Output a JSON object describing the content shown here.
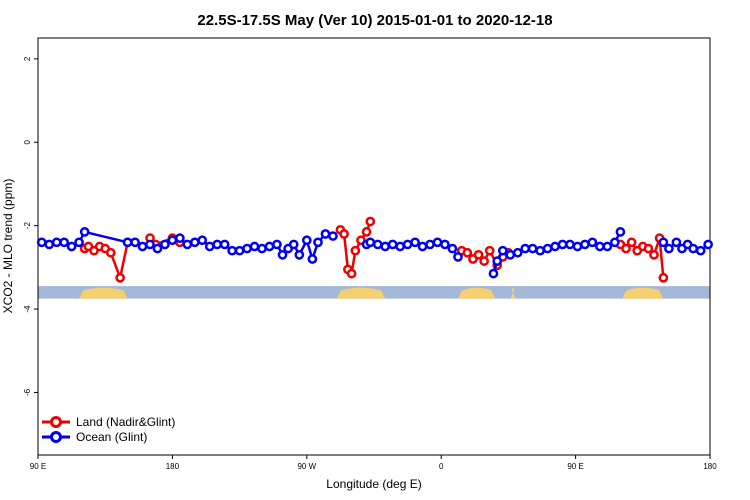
{
  "chart_data": {
    "type": "line",
    "title": "22.5S-17.5S May (Ver 10)   2015-01-01 to 2020-12-18",
    "xlabel": "Longitude (deg E)",
    "ylabel": "XCO2 - MLO trend (ppm)",
    "xlim": [
      0,
      360
    ],
    "ylim": [
      -7.5,
      2.5
    ],
    "x_ticks": [
      {
        "value": 0,
        "label": "90 E"
      },
      {
        "value": 72,
        "label": "180"
      },
      {
        "value": 144,
        "label": "90 W"
      },
      {
        "value": 216,
        "label": "0"
      },
      {
        "value": 288,
        "label": "90 E"
      },
      {
        "value": 360,
        "label": "180"
      }
    ],
    "y_ticks": [
      {
        "value": 2,
        "label": "2"
      },
      {
        "value": 0,
        "label": "0"
      },
      {
        "value": -2,
        "label": "-2"
      },
      {
        "value": -4,
        "label": "-4"
      },
      {
        "value": -6,
        "label": "-6"
      }
    ],
    "grid": false,
    "legend_position": "bottom-left",
    "land_ocean_band": {
      "y_range": [
        -3.75,
        -3.45
      ],
      "ocean_color": "#a3b7d9",
      "land_color": "#f5d070",
      "land_segments": [
        [
          22,
          48
        ],
        [
          160,
          186
        ],
        [
          225,
          245
        ],
        [
          253,
          256
        ],
        [
          313,
          335
        ]
      ]
    },
    "series": [
      {
        "name": "Land (Nadir&Glint)",
        "color": "#ee0000",
        "segments": [
          {
            "x": [
              25,
              27,
              30,
              33,
              36,
              39,
              44,
              48
            ],
            "y": [
              -2.55,
              -2.5,
              -2.6,
              -2.5,
              -2.55,
              -2.65,
              -3.25,
              -2.4
            ]
          },
          {
            "x": [
              60,
              63,
              72,
              76
            ],
            "y": [
              -2.3,
              -2.45,
              -2.3,
              -2.4
            ]
          },
          {
            "x": [
              162,
              164,
              166,
              168,
              170,
              173,
              176,
              178
            ],
            "y": [
              -2.1,
              -2.2,
              -3.05,
              -3.15,
              -2.6,
              -2.35,
              -2.15,
              -1.9
            ]
          },
          {
            "x": [
              227,
              230,
              233,
              236,
              239,
              242,
              246,
              249,
              252
            ],
            "y": [
              -2.6,
              -2.65,
              -2.8,
              -2.7,
              -2.85,
              -2.6,
              -2.95,
              -2.75,
              -2.65
            ]
          },
          {
            "x": [
              312,
              315,
              318,
              321,
              324,
              327,
              330,
              333,
              335
            ],
            "y": [
              -2.45,
              -2.55,
              -2.4,
              -2.6,
              -2.5,
              -2.55,
              -2.7,
              -2.3,
              -3.25
            ]
          }
        ]
      },
      {
        "name": "Ocean (Glint)",
        "color": "#0000ee",
        "segments": [
          {
            "x": [
              2,
              6,
              10,
              14,
              18,
              22,
              25,
              48,
              52,
              56,
              60,
              64,
              68,
              72,
              76,
              80,
              84,
              88,
              92,
              96,
              100,
              104,
              108,
              112,
              116,
              120,
              124,
              128,
              131,
              134,
              137,
              140,
              144,
              147,
              150,
              154,
              158
            ],
            "y": [
              -2.4,
              -2.45,
              -2.4,
              -2.4,
              -2.5,
              -2.4,
              -2.15,
              -2.4,
              -2.4,
              -2.5,
              -2.45,
              -2.55,
              -2.45,
              -2.35,
              -2.3,
              -2.45,
              -2.4,
              -2.35,
              -2.5,
              -2.45,
              -2.45,
              -2.6,
              -2.6,
              -2.55,
              -2.5,
              -2.55,
              -2.5,
              -2.45,
              -2.7,
              -2.55,
              -2.45,
              -2.7,
              -2.35,
              -2.8,
              -2.4,
              -2.2,
              -2.25
            ]
          },
          {
            "x": [
              176,
              178,
              182,
              186,
              190,
              194,
              198,
              202,
              206,
              210,
              214,
              218,
              222,
              225
            ],
            "y": [
              -2.45,
              -2.4,
              -2.45,
              -2.5,
              -2.45,
              -2.5,
              -2.45,
              -2.4,
              -2.5,
              -2.45,
              -2.4,
              -2.45,
              -2.55,
              -2.75
            ]
          },
          {
            "x": [
              244,
              246,
              249,
              253,
              257,
              261,
              265,
              269,
              273,
              277,
              281,
              285,
              289,
              293,
              297,
              301,
              305,
              309,
              312
            ],
            "y": [
              -3.15,
              -2.85,
              -2.6,
              -2.7,
              -2.65,
              -2.55,
              -2.55,
              -2.6,
              -2.55,
              -2.5,
              -2.45,
              -2.45,
              -2.5,
              -2.45,
              -2.4,
              -2.5,
              -2.5,
              -2.4,
              -2.15
            ]
          },
          {
            "x": [
              335,
              338,
              342,
              345,
              348,
              351,
              355,
              359
            ],
            "y": [
              -2.4,
              -2.55,
              -2.4,
              -2.55,
              -2.45,
              -2.55,
              -2.6,
              -2.45
            ]
          }
        ]
      }
    ]
  }
}
